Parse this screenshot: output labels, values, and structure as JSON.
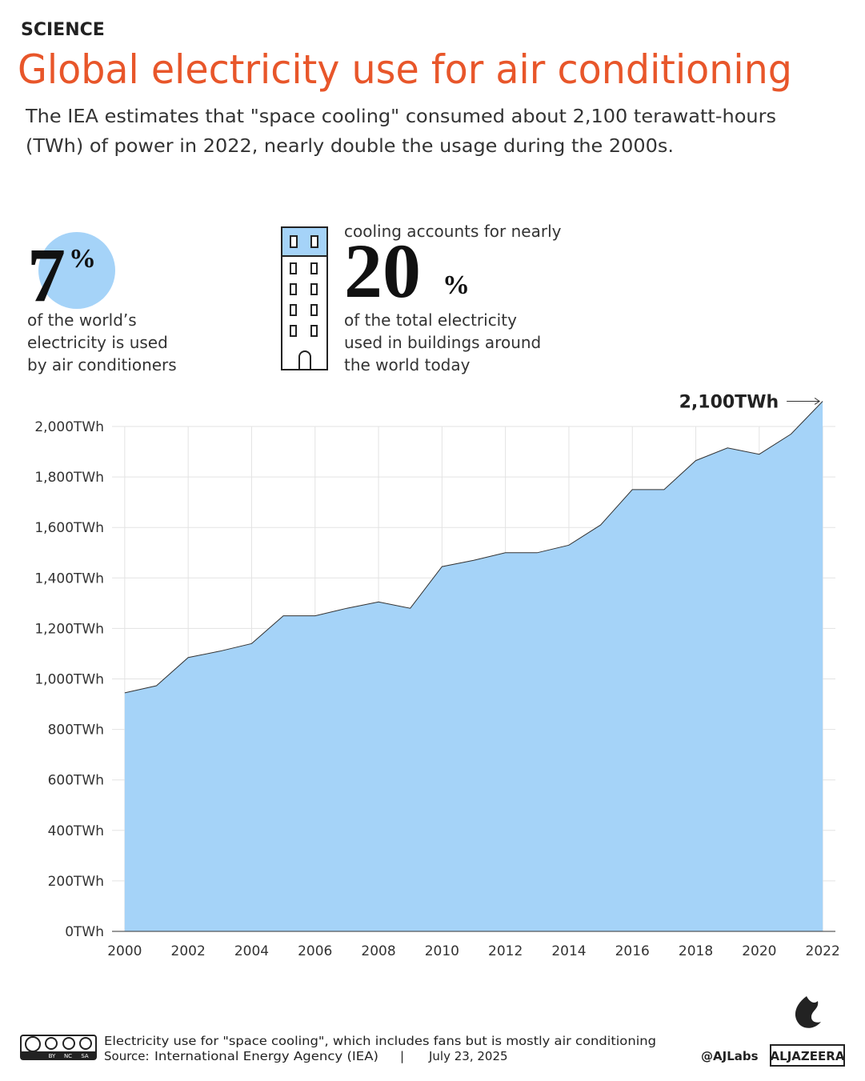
{
  "header": {
    "kicker": "SCIENCE",
    "title": "Global electricity use for air conditioning",
    "subtitle": [
      "The IEA estimates that \"space cooling\" consumed about 2,100 terawatt-hours",
      "(TWh) of power in 2022, nearly double the usage during the 2000s."
    ]
  },
  "stats": [
    {
      "number": "7",
      "unit": "%",
      "lines": [
        "of the world’s",
        "electricity is used",
        "by air conditioners"
      ]
    },
    {
      "lead": "cooling accounts for nearly",
      "number": "20",
      "unit": "%",
      "lines": [
        "of the total electricity",
        "used in buildings around",
        "the world today"
      ]
    }
  ],
  "chart_data": {
    "type": "area",
    "annotation": "2,100TWh",
    "x": [
      2000,
      2001,
      2002,
      2003,
      2004,
      2005,
      2006,
      2007,
      2008,
      2009,
      2010,
      2011,
      2012,
      2013,
      2014,
      2015,
      2016,
      2017,
      2018,
      2019,
      2020,
      2021,
      2022
    ],
    "values": [
      945,
      973,
      1085,
      1110,
      1140,
      1250,
      1250,
      1280,
      1305,
      1280,
      1445,
      1470,
      1500,
      1500,
      1530,
      1610,
      1750,
      1750,
      1865,
      1915,
      1890,
      1970,
      2100
    ],
    "color": "#a5d3f8",
    "line_color": "#333333",
    "xlim": [
      1999.6,
      2022.4
    ],
    "ylim": [
      0,
      2130
    ],
    "xticks": [
      2000,
      2002,
      2004,
      2006,
      2008,
      2010,
      2012,
      2014,
      2016,
      2018,
      2020,
      2022
    ],
    "yticks": [
      {
        "value": 0,
        "label": "0TWh"
      },
      {
        "value": 200,
        "label": "200TWh"
      },
      {
        "value": 400,
        "label": "400TWh"
      },
      {
        "value": 600,
        "label": "600TWh"
      },
      {
        "value": 800,
        "label": "800TWh"
      },
      {
        "value": 1000,
        "label": "1,000TWh"
      },
      {
        "value": 1200,
        "label": "1,200TWh"
      },
      {
        "value": 1400,
        "label": "1,400TWh"
      },
      {
        "value": 1600,
        "label": "1,600TWh"
      },
      {
        "value": 1800,
        "label": "1,800TWh"
      },
      {
        "value": 2000,
        "label": "2,000TWh"
      }
    ],
    "grid": true
  },
  "footer": {
    "note": "Electricity use for \"space cooling\", which includes fans but is mostly air conditioning",
    "source_label": "Source:",
    "source": "International Energy Agency (IEA)",
    "separator": "|",
    "date": "July 23, 2025",
    "handle": "@AJLabs",
    "brand": "ALJAZEERA",
    "cc": [
      "BY",
      "NC",
      "SA"
    ]
  }
}
